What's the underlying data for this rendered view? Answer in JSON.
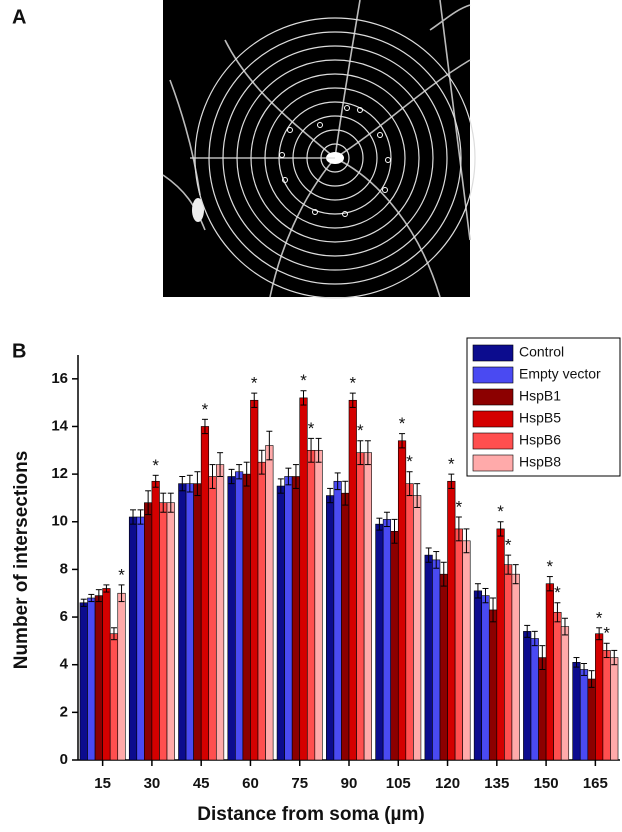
{
  "panel_labels": [
    "A",
    "B"
  ],
  "chart_data": {
    "type": "bar",
    "x_label": "Distance from soma (µm)",
    "y_label": "Number of intersections",
    "categories": [
      "15",
      "30",
      "45",
      "60",
      "75",
      "90",
      "105",
      "120",
      "135",
      "150",
      "165"
    ],
    "series": [
      {
        "name": "Control",
        "color": "#0c0c8e",
        "values": [
          6.6,
          10.2,
          11.6,
          11.9,
          11.5,
          11.1,
          9.9,
          8.6,
          7.1,
          5.4,
          4.1
        ],
        "errors": [
          0.15,
          0.3,
          0.3,
          0.3,
          0.3,
          0.3,
          0.25,
          0.3,
          0.3,
          0.25,
          0.2
        ]
      },
      {
        "name": "Empty vector",
        "color": "#4a4af2",
        "values": [
          6.8,
          10.2,
          11.6,
          12.1,
          11.9,
          11.7,
          10.1,
          8.4,
          6.9,
          5.1,
          3.8
        ],
        "errors": [
          0.15,
          0.3,
          0.35,
          0.3,
          0.35,
          0.35,
          0.3,
          0.35,
          0.3,
          0.3,
          0.25
        ]
      },
      {
        "name": "HspB1",
        "color": "#8c0000",
        "values": [
          6.9,
          10.8,
          11.6,
          12.0,
          11.9,
          11.2,
          9.6,
          7.8,
          6.3,
          4.3,
          3.4
        ],
        "errors": [
          0.25,
          0.5,
          0.5,
          0.5,
          0.5,
          0.5,
          0.5,
          0.5,
          0.5,
          0.5,
          0.35
        ]
      },
      {
        "name": "HspB5",
        "color": "#d40000",
        "values": [
          7.2,
          11.7,
          14.0,
          15.1,
          15.2,
          15.1,
          13.4,
          11.7,
          9.7,
          7.4,
          5.3
        ],
        "errors": [
          0.15,
          0.25,
          0.3,
          0.3,
          0.3,
          0.3,
          0.3,
          0.3,
          0.3,
          0.3,
          0.25
        ]
      },
      {
        "name": "HspB6",
        "color": "#ff4f4f",
        "values": [
          5.3,
          10.8,
          11.9,
          12.5,
          13.0,
          12.9,
          11.6,
          9.7,
          8.2,
          6.2,
          4.6
        ],
        "errors": [
          0.25,
          0.4,
          0.5,
          0.5,
          0.5,
          0.5,
          0.5,
          0.5,
          0.4,
          0.4,
          0.3
        ]
      },
      {
        "name": "HspB8",
        "color": "#ffaaaa",
        "values": [
          7.0,
          10.8,
          12.4,
          13.2,
          13.0,
          12.9,
          11.1,
          9.2,
          7.8,
          5.6,
          4.3
        ],
        "errors": [
          0.35,
          0.4,
          0.5,
          0.6,
          0.5,
          0.5,
          0.5,
          0.5,
          0.4,
          0.35,
          0.3
        ]
      }
    ],
    "annotations": [
      {
        "text": "*",
        "category": "15",
        "series": "HspB8"
      },
      {
        "text": "*",
        "category": "30",
        "series": "HspB5"
      },
      {
        "text": "*",
        "category": "45",
        "series": "HspB5"
      },
      {
        "text": "*",
        "category": "60",
        "series": "HspB5"
      },
      {
        "text": "*",
        "category": "75",
        "series": "HspB5"
      },
      {
        "text": "*",
        "category": "75",
        "series": "HspB6"
      },
      {
        "text": "*",
        "category": "90",
        "series": "HspB5"
      },
      {
        "text": "*",
        "category": "90",
        "series": "HspB6"
      },
      {
        "text": "*",
        "category": "105",
        "series": "HspB5"
      },
      {
        "text": "*",
        "category": "105",
        "series": "HspB6"
      },
      {
        "text": "*",
        "category": "120",
        "series": "HspB5"
      },
      {
        "text": "*",
        "category": "120",
        "series": "HspB6"
      },
      {
        "text": "*",
        "category": "135",
        "series": "HspB5"
      },
      {
        "text": "*",
        "category": "135",
        "series": "HspB6"
      },
      {
        "text": "*",
        "category": "150",
        "series": "HspB5"
      },
      {
        "text": "*",
        "category": "150",
        "series": "HspB6"
      },
      {
        "text": "*",
        "category": "165",
        "series": "HspB5"
      },
      {
        "text": "*",
        "category": "165",
        "series": "HspB6"
      }
    ],
    "ylim": [
      0,
      17
    ],
    "yticks": [
      0,
      2,
      4,
      6,
      8,
      10,
      12,
      14,
      16
    ],
    "legend": "top-right"
  }
}
